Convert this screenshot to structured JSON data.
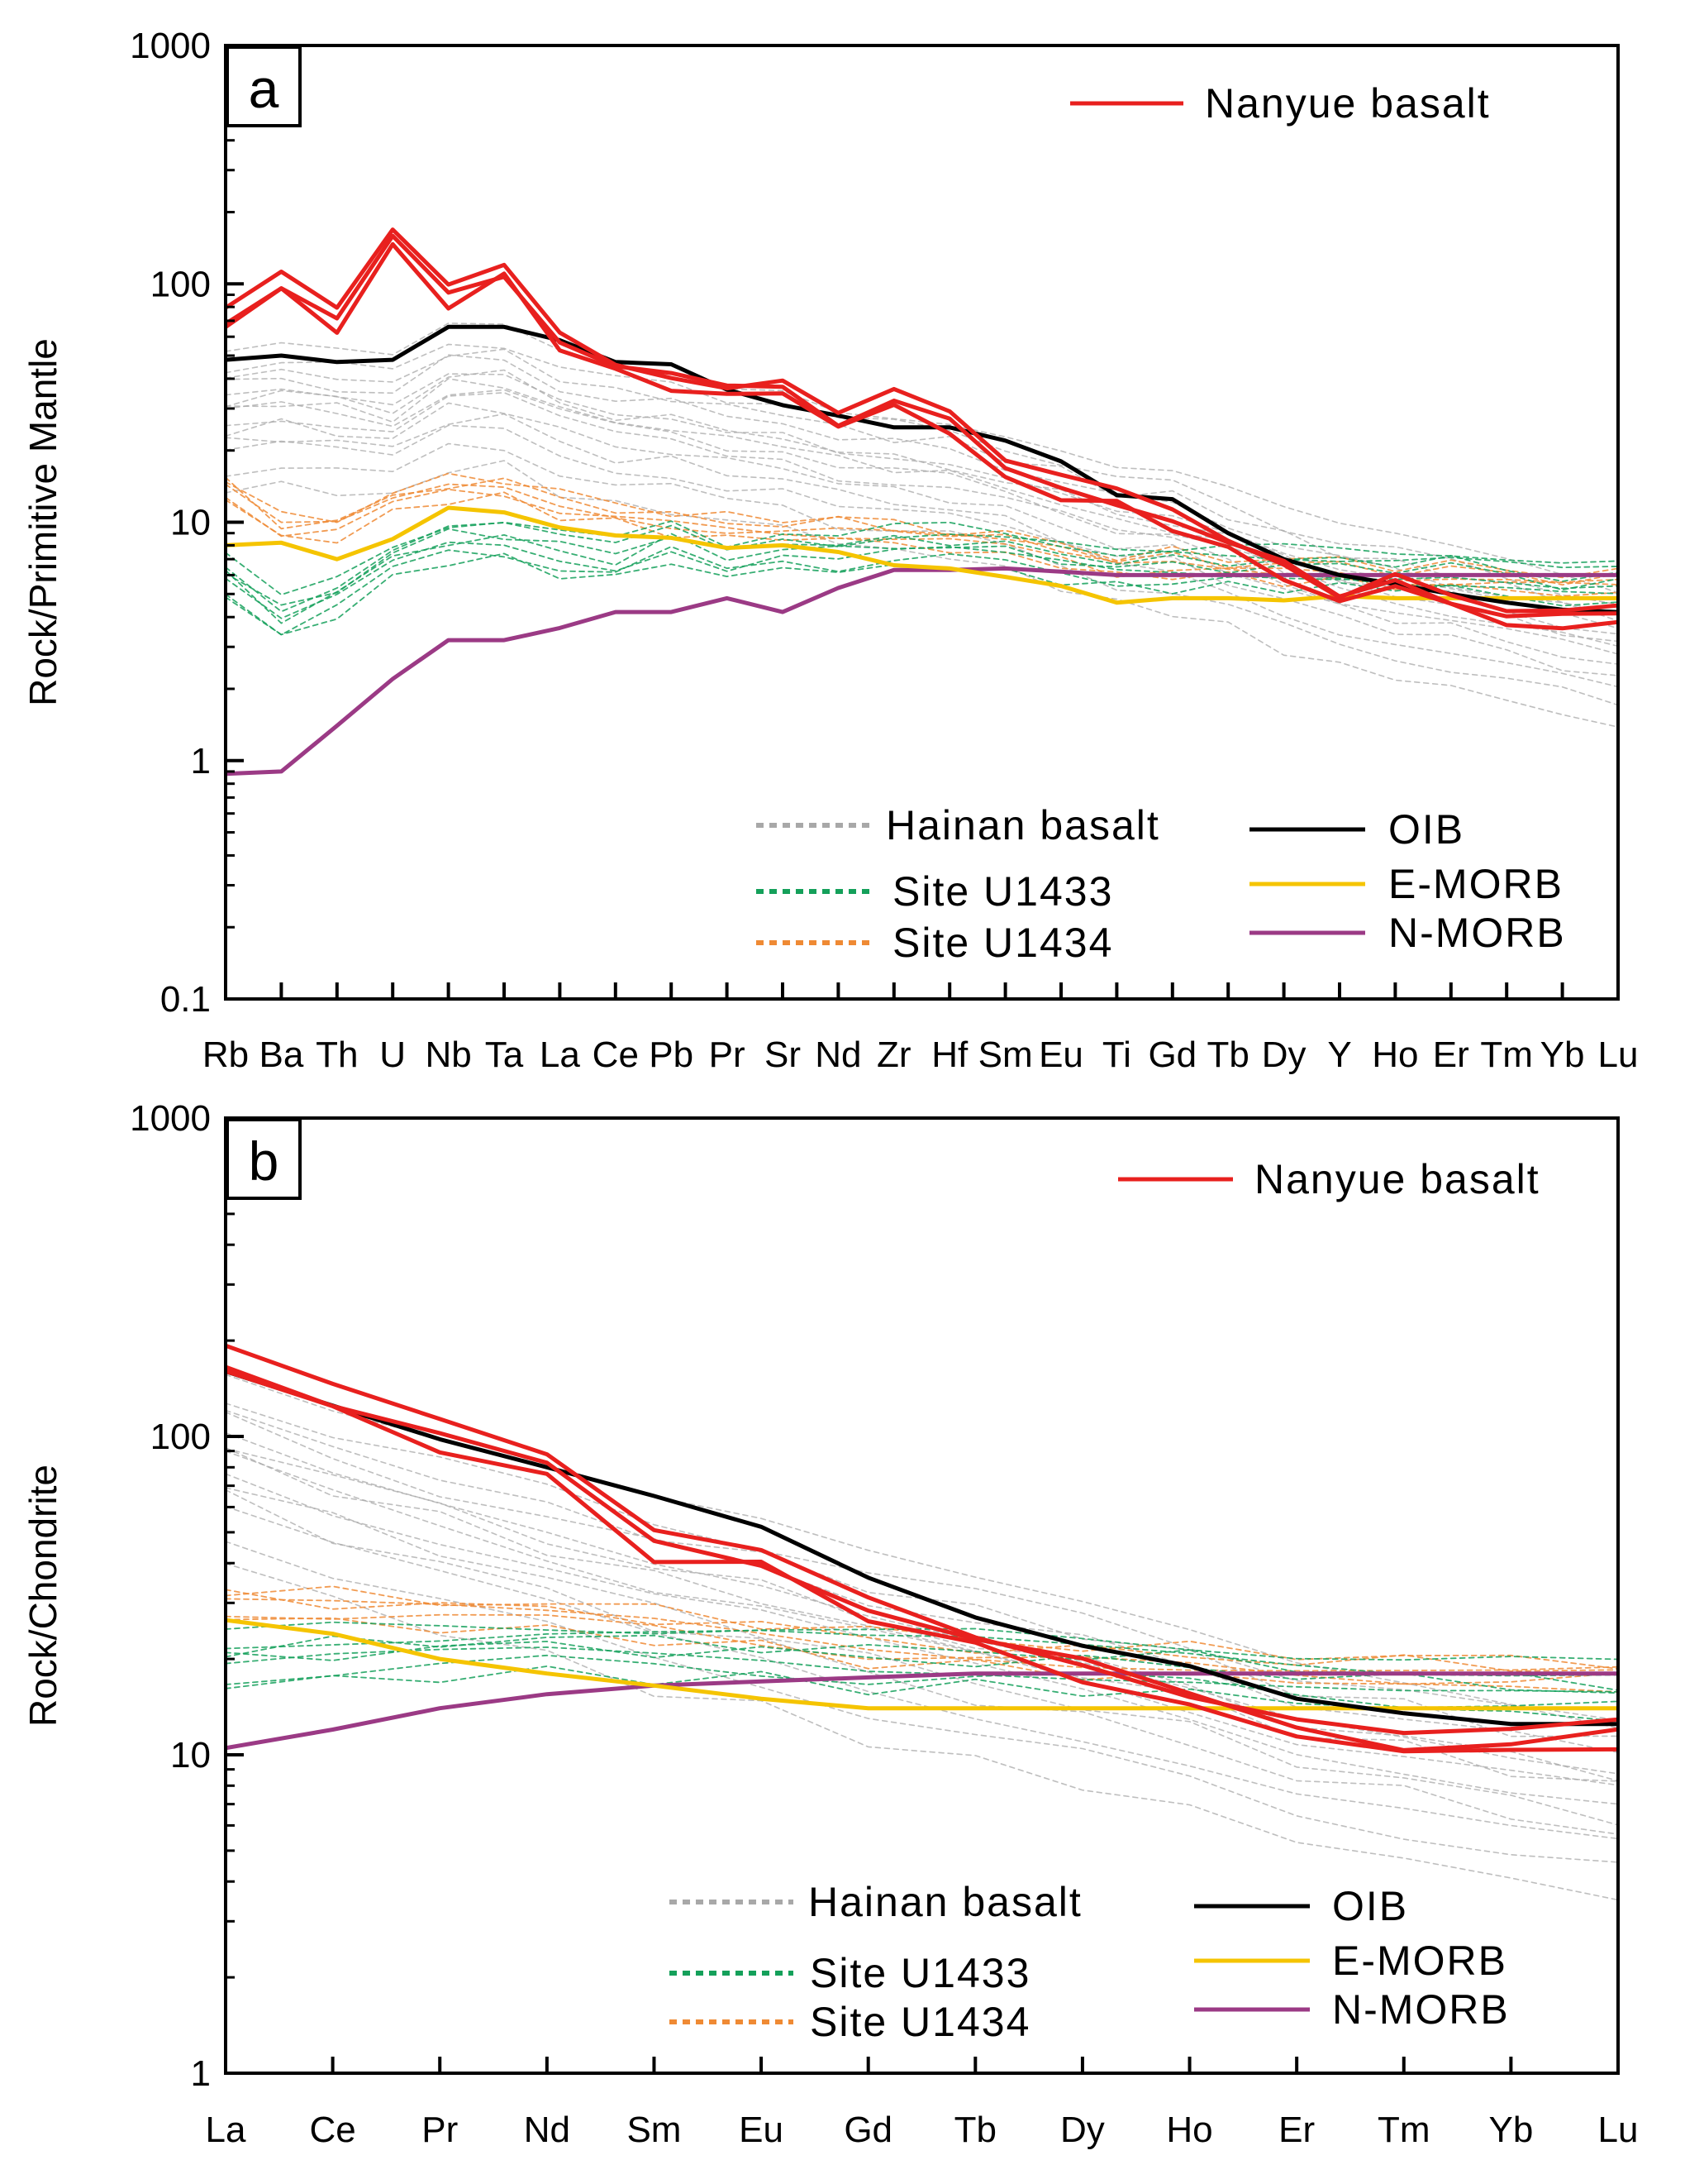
{
  "chart_data": [
    {
      "type": "line",
      "panel_label": "a",
      "ylabel": "Rock/Primitive Mantle",
      "xlabel": "",
      "yscale": "log",
      "ylim": [
        0.1,
        1000
      ],
      "yticks": [
        "0.1",
        "1",
        "10",
        "100",
        "1000"
      ],
      "categories": [
        "Rb",
        "Ba",
        "Th",
        "U",
        "Nb",
        "Ta",
        "La",
        "Ce",
        "Pb",
        "Pr",
        "Sr",
        "Nd",
        "Zr",
        "Hf",
        "Sm",
        "Eu",
        "Ti",
        "Gd",
        "Tb",
        "Dy",
        "Y",
        "Ho",
        "Er",
        "Tm",
        "Yb",
        "Lu"
      ],
      "legend": [
        {
          "key": "nanyue",
          "label": "Nanyue basalt"
        },
        {
          "key": "hainan",
          "label": "Hainan basalt"
        },
        {
          "key": "u1433",
          "label": "Site U1433"
        },
        {
          "key": "u1434",
          "label": "Site U1434"
        },
        {
          "key": "oib",
          "label": "OIB"
        },
        {
          "key": "emorb",
          "label": "E-MORB"
        },
        {
          "key": "nmorb",
          "label": "N-MORB"
        }
      ],
      "series": [
        {
          "name": "Nanyue basalt",
          "key": "nanyue",
          "values": [
            72,
            100,
            70,
            150,
            90,
            112,
            60,
            45,
            40,
            36,
            38,
            27,
            33,
            26,
            16,
            14,
            12.5,
            10.5,
            8,
            6.5,
            4.8,
            6,
            4.8,
            4,
            3.9,
            4
          ]
        },
        {
          "name": "OIB",
          "key": "oib",
          "values": [
            48,
            50,
            47,
            48,
            66,
            66,
            58,
            47,
            46,
            36,
            31,
            28,
            25,
            25,
            22,
            18,
            13,
            12.5,
            9,
            7,
            6,
            5.5,
            5,
            4.6,
            4.3,
            4.2
          ]
        },
        {
          "name": "E-MORB",
          "key": "emorb",
          "values": [
            8,
            8.2,
            7,
            8.5,
            11.5,
            11,
            9.5,
            8.8,
            8.6,
            7.8,
            8,
            7.5,
            6.6,
            6.4,
            5.9,
            5.4,
            4.6,
            4.8,
            4.8,
            4.7,
            4.9,
            4.8,
            4.8,
            4.8,
            4.8,
            4.8
          ]
        },
        {
          "name": "N-MORB",
          "key": "nmorb",
          "values": [
            0.88,
            0.9,
            1.4,
            2.2,
            3.2,
            3.2,
            3.6,
            4.2,
            4.2,
            4.8,
            4.2,
            5.3,
            6.3,
            6.3,
            6.4,
            6.2,
            6.0,
            6.0,
            6.0,
            6.0,
            6.0,
            6.0,
            6.0,
            6.0,
            6.0,
            6.0
          ]
        },
        {
          "name": "Hainan basalt",
          "key": "hainan",
          "values": [
            30,
            32,
            30,
            28,
            38,
            38,
            30,
            26,
            25,
            22,
            22,
            18,
            17,
            16,
            14,
            12,
            10,
            9.5,
            8,
            6.5,
            5.5,
            5,
            4.5,
            4,
            3.5,
            3
          ]
        },
        {
          "name": "Site U1433",
          "key": "u1433",
          "values": [
            6,
            4,
            5,
            7,
            8.5,
            8.5,
            7.5,
            7,
            8.5,
            7,
            8,
            7.5,
            8,
            8,
            7.5,
            7,
            6.5,
            6.5,
            6.5,
            6.5,
            6.5,
            6.5,
            6.5,
            6,
            5.5,
            5.5
          ]
        },
        {
          "name": "Site U1434",
          "key": "u1434",
          "values": [
            14,
            9.5,
            9.5,
            12,
            14,
            14,
            12,
            11,
            10,
            9.5,
            9.5,
            9.5,
            9,
            8.5,
            8,
            7.5,
            6.5,
            6.8,
            6.5,
            6.3,
            6.3,
            6,
            6,
            5.8,
            5.5,
            5.5
          ]
        }
      ]
    },
    {
      "type": "line",
      "panel_label": "b",
      "ylabel": "Rock/Chondrite",
      "xlabel": "",
      "yscale": "log",
      "ylim": [
        1,
        1000
      ],
      "yticks": [
        "1",
        "10",
        "100",
        "1000"
      ],
      "categories": [
        "La",
        "Ce",
        "Pr",
        "Nd",
        "Sm",
        "Eu",
        "Gd",
        "Tb",
        "Dy",
        "Ho",
        "Er",
        "Tm",
        "Yb",
        "Lu"
      ],
      "legend": [
        {
          "key": "nanyue",
          "label": "Nanyue basalt"
        },
        {
          "key": "hainan",
          "label": "Hainan basalt"
        },
        {
          "key": "u1433",
          "label": "Site U1433"
        },
        {
          "key": "u1434",
          "label": "Site U1434"
        },
        {
          "key": "oib",
          "label": "OIB"
        },
        {
          "key": "emorb",
          "label": "E-MORB"
        },
        {
          "key": "nmorb",
          "label": "N-MORB"
        }
      ],
      "series": [
        {
          "name": "Nanyue basalt",
          "key": "nanyue",
          "values": [
            175,
            130,
            100,
            78,
            46,
            41,
            30,
            23,
            19,
            15,
            12.5,
            11,
            11,
            11.5
          ]
        },
        {
          "name": "OIB",
          "key": "oib",
          "values": [
            160,
            125,
            98,
            80,
            65,
            52,
            36,
            27,
            22,
            19,
            15,
            13.5,
            12.5,
            12.5
          ]
        },
        {
          "name": "E-MORB",
          "key": "emorb",
          "values": [
            26.5,
            24,
            20,
            18,
            16.5,
            15,
            14,
            14,
            14,
            14,
            14,
            14,
            14,
            14
          ]
        },
        {
          "name": "N-MORB",
          "key": "nmorb",
          "values": [
            10.5,
            12,
            14,
            15.5,
            16.5,
            17,
            17.5,
            18,
            18,
            18,
            18,
            18,
            18,
            18
          ]
        },
        {
          "name": "Hainan basalt",
          "key": "hainan",
          "values": [
            90,
            68,
            55,
            45,
            36,
            31,
            25,
            21,
            18,
            15,
            12,
            10.5,
            9,
            8
          ]
        },
        {
          "name": "Site U1433",
          "key": "u1433",
          "values": [
            20,
            21,
            21.5,
            22,
            21.5,
            21,
            20,
            20,
            19.5,
            19,
            18,
            17,
            16.5,
            16
          ]
        },
        {
          "name": "Site U1434",
          "key": "u1434",
          "values": [
            30,
            29,
            28,
            27,
            26,
            24,
            22,
            21,
            20,
            19.5,
            19,
            18.5,
            18,
            18
          ]
        }
      ]
    }
  ],
  "styles": {
    "nanyue": {
      "color": "#e8201e",
      "dash": ""
    },
    "oib": {
      "color": "#000000",
      "dash": ""
    },
    "emorb": {
      "color": "#f5c400",
      "dash": ""
    },
    "nmorb": {
      "color": "#9b3a85",
      "dash": ""
    },
    "hainan": {
      "color": "#a8a8a8",
      "dash": "9 7"
    },
    "u1433": {
      "color": "#14a05a",
      "dash": "9 7"
    },
    "u1434": {
      "color": "#ef8a34",
      "dash": "9 7"
    }
  }
}
